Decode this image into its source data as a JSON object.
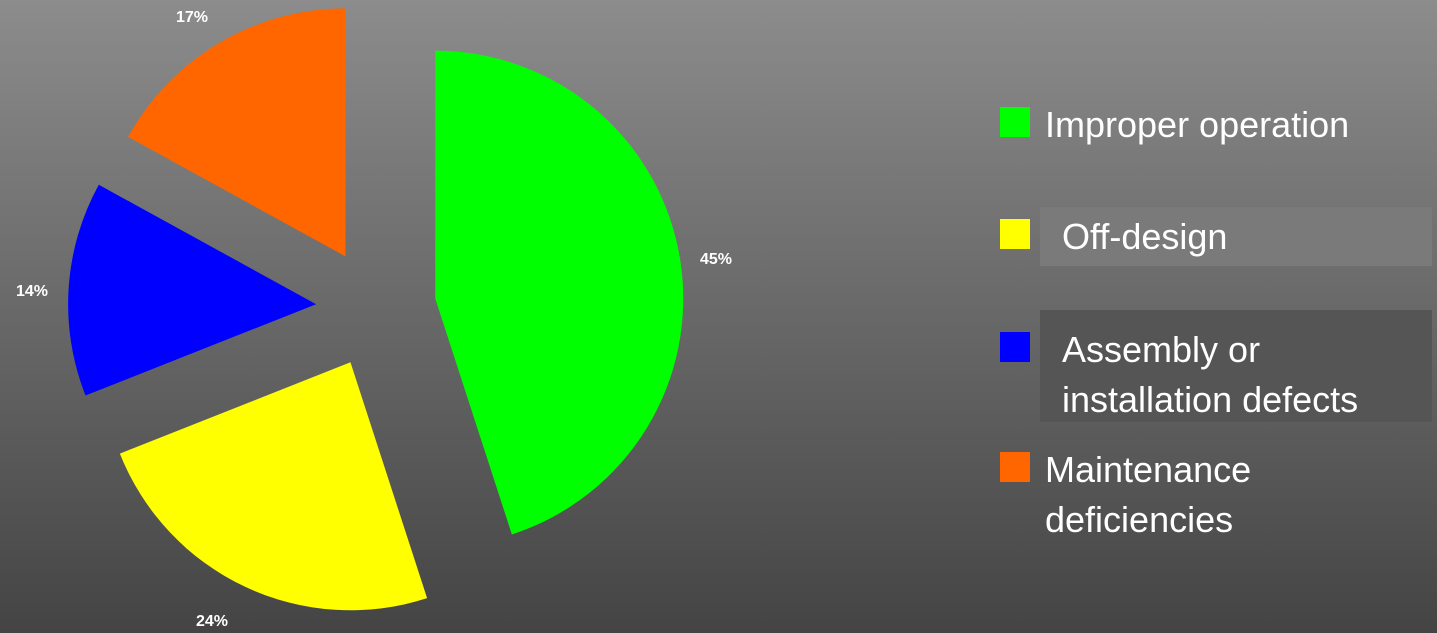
{
  "chart_data": {
    "type": "pie",
    "categories": [
      "Improper operation",
      "Off-design",
      "Assembly or installation defects",
      "Maintenance deficiencies"
    ],
    "values": [
      45,
      24,
      14,
      17
    ],
    "value_labels": [
      "45%",
      "24%",
      "14%",
      "17%"
    ],
    "colors": [
      "#00ff00",
      "#ffff00",
      "#0000ff",
      "#ff6600"
    ],
    "legend": "right"
  }
}
